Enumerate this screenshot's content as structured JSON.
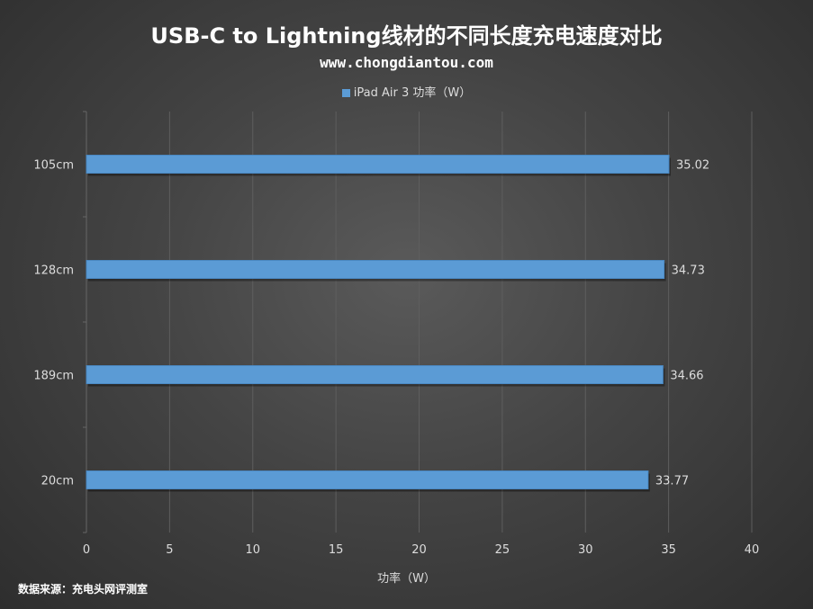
{
  "chart_data": {
    "type": "bar",
    "orientation": "horizontal",
    "title": "USB-C to Lightning线材的不同长度充电速度对比",
    "subtitle": "www.chongdiantou.com",
    "categories": [
      "105cm",
      "128cm",
      "189cm",
      "20cm"
    ],
    "series": [
      {
        "name": "iPad Air 3 功率（W）",
        "values": [
          35.02,
          34.73,
          34.66,
          33.77
        ],
        "color": "#5b9bd5"
      }
    ],
    "data_labels": [
      "35.02",
      "34.73",
      "34.66",
      "33.77"
    ],
    "xlabel": "功率（W）",
    "ylabel": "",
    "xlim": [
      0,
      40
    ],
    "xticks": [
      0,
      5,
      10,
      15,
      20,
      25,
      30,
      35,
      40
    ],
    "grid": true,
    "legend_position": "top"
  },
  "source": "数据来源：充电头网评测室"
}
